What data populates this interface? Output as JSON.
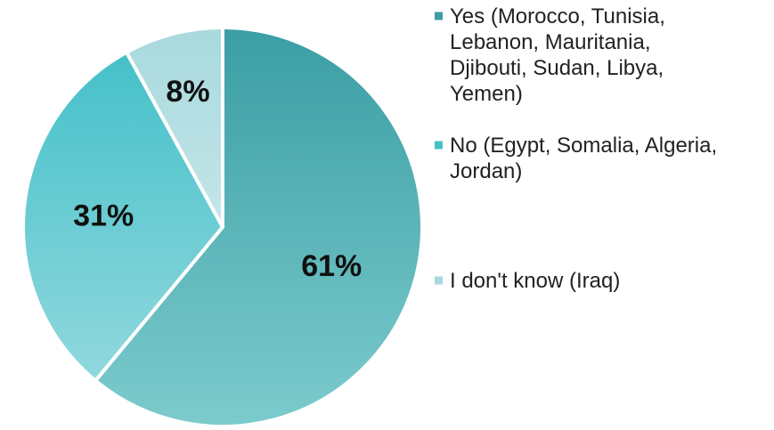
{
  "chart_data": {
    "type": "pie",
    "title": "",
    "legend_position": "right",
    "slices": [
      {
        "value": 61,
        "label": "61%",
        "legend": [
          "Yes (Morocco, Tunisia,",
          "Lebanon, Mauritania,",
          "Djibouti, Sudan, Libya,",
          "Yemen)"
        ],
        "color_dark": "#3a9ea4",
        "color_light": "#7ccbcd"
      },
      {
        "value": 31,
        "label": "31%",
        "legend": [
          "No (Egypt, Somalia, Algeria,",
          "Jordan)"
        ],
        "color_dark": "#45c0c9",
        "color_light": "#90d8dd"
      },
      {
        "value": 8,
        "label": "8%",
        "legend": [
          "I don't know (Iraq)"
        ],
        "color_dark": "#a8d9de",
        "color_light": "#c4e6e9"
      }
    ]
  }
}
